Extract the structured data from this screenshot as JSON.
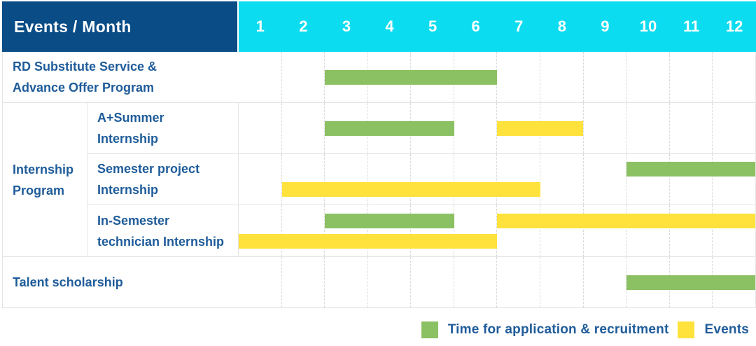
{
  "title_cell": "Events / Month",
  "months": [
    "1",
    "2",
    "3",
    "4",
    "5",
    "6",
    "7",
    "8",
    "9",
    "10",
    "11",
    "12"
  ],
  "colors": {
    "header_bg": "#0a4c85",
    "months_bg": "#0cdcf0",
    "application": "#8cc163",
    "event": "#ffe23c",
    "label_text": "#1f5c9a"
  },
  "legend": [
    {
      "kind": "application",
      "label": "Time for application & recruitment"
    },
    {
      "kind": "event",
      "label": "Events"
    }
  ],
  "chart_data": {
    "type": "gantt",
    "x_axis_label": "Month",
    "x_ticks": [
      1,
      2,
      3,
      4,
      5,
      6,
      7,
      8,
      9,
      10,
      11,
      12
    ],
    "x_range": [
      1,
      12
    ],
    "grid": "vertical-dashed-per-month",
    "legend_position": "bottom-right",
    "legend": {
      "application": "Time for application & recruitment",
      "event": "Events"
    },
    "groups": [
      {
        "group_lines": null,
        "rows": [
          {
            "label": "RD Substitute Service & Advance Offer Program",
            "label_lines": [
              "RD Substitute Service &",
              "Advance Offer Program"
            ],
            "lanes": [
              [
                {
                  "kind": "application",
                  "start": 3,
                  "end": 6
                }
              ]
            ]
          }
        ]
      },
      {
        "group": "Internship Program",
        "group_lines": [
          "Internship",
          "Program"
        ],
        "rows": [
          {
            "label": "A+Summer Internship",
            "label_lines": [
              "A+Summer",
              "Internship"
            ],
            "lanes": [
              [
                {
                  "kind": "application",
                  "start": 3,
                  "end": 5
                },
                {
                  "kind": "event",
                  "start": 7,
                  "end": 8
                }
              ]
            ]
          },
          {
            "label": "Semester project Internship",
            "label_lines": [
              "Semester project",
              "Internship"
            ],
            "lanes": [
              [
                {
                  "kind": "application",
                  "start": 10,
                  "end": 12
                }
              ],
              [
                {
                  "kind": "event",
                  "start": 2,
                  "end": 7
                }
              ]
            ]
          },
          {
            "label": "In-Semester technician Internship",
            "label_lines": [
              "In-Semester",
              "technician Internship"
            ],
            "lanes": [
              [
                {
                  "kind": "application",
                  "start": 3,
                  "end": 5
                },
                {
                  "kind": "event",
                  "start": 7,
                  "end": 12
                }
              ],
              [
                {
                  "kind": "event",
                  "start": 1,
                  "end": 6
                }
              ]
            ]
          }
        ]
      },
      {
        "group_lines": null,
        "rows": [
          {
            "label": "Talent scholarship",
            "label_lines": [
              "Talent scholarship"
            ],
            "lanes": [
              [
                {
                  "kind": "application",
                  "start": 10,
                  "end": 12
                }
              ]
            ]
          }
        ]
      }
    ]
  }
}
